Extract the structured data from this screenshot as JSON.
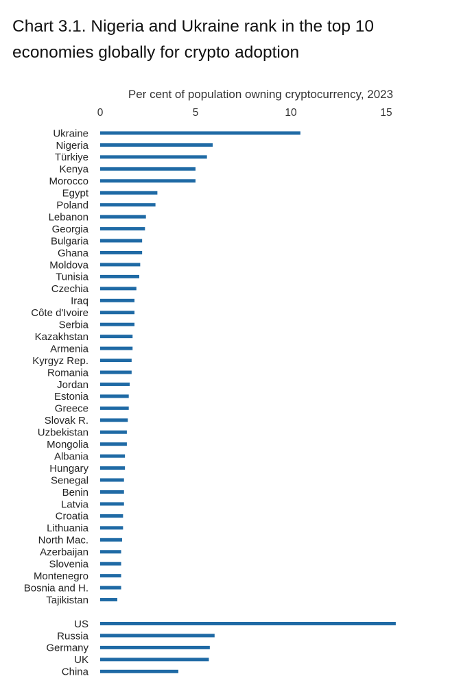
{
  "title": "Chart 3.1. Nigeria and Ukraine rank in the top 10 economies globally for crypto adoption",
  "chart_data": {
    "type": "bar",
    "orientation": "horizontal",
    "title": "Chart 3.1. Nigeria and Ukraine rank in the top 10 economies globally for crypto adoption",
    "xlabel": "Per cent of population owning cryptocurrency, 2023",
    "ylabel": "",
    "xlim": [
      0,
      16
    ],
    "xticks": [
      0,
      5,
      10,
      15
    ],
    "xaxis_position": "top",
    "bar_color": "#1f6aa5",
    "grid": false,
    "groups": [
      {
        "name": "main",
        "categories": [
          "Ukraine",
          "Nigeria",
          "Türkiye",
          "Kenya",
          "Morocco",
          "Egypt",
          "Poland",
          "Lebanon",
          "Georgia",
          "Bulgaria",
          "Ghana",
          "Moldova",
          "Tunisia",
          "Czechia",
          "Iraq",
          "Côte d'Ivoire",
          "Serbia",
          "Kazakhstan",
          "Armenia",
          "Kyrgyz Rep.",
          "Romania",
          "Jordan",
          "Estonia",
          "Greece",
          "Slovak R.",
          "Uzbekistan",
          "Mongolia",
          "Albania",
          "Hungary",
          "Senegal",
          "Benin",
          "Latvia",
          "Croatia",
          "Lithuania",
          "North Mac.",
          "Azerbaijan",
          "Slovenia",
          "Montenegro",
          "Bosnia and H.",
          "Tajikistan"
        ],
        "values": [
          10.5,
          5.9,
          5.6,
          5.0,
          5.0,
          3.0,
          2.9,
          2.4,
          2.35,
          2.2,
          2.2,
          2.1,
          2.05,
          1.9,
          1.8,
          1.8,
          1.8,
          1.7,
          1.7,
          1.65,
          1.65,
          1.55,
          1.5,
          1.5,
          1.45,
          1.4,
          1.4,
          1.3,
          1.3,
          1.25,
          1.25,
          1.25,
          1.2,
          1.2,
          1.15,
          1.1,
          1.1,
          1.1,
          1.1,
          0.9
        ]
      },
      {
        "name": "comparison",
        "categories": [
          "US",
          "Russia",
          "Germany",
          "UK",
          "China"
        ],
        "values": [
          15.5,
          6.0,
          5.75,
          5.7,
          4.1
        ]
      }
    ]
  }
}
